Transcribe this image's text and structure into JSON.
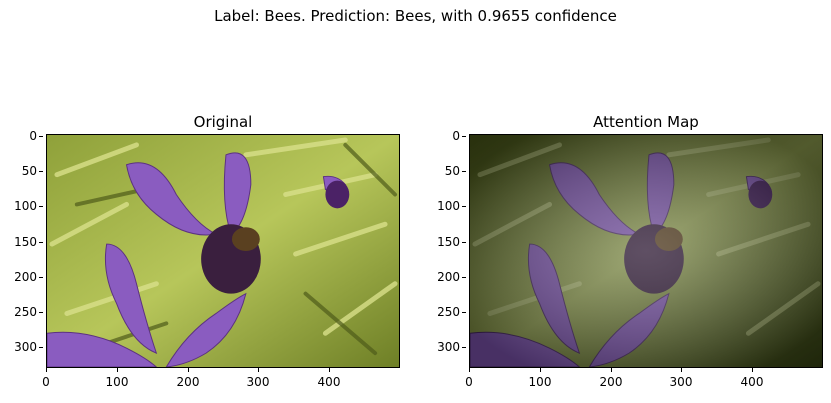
{
  "figure": {
    "suptitle": "Label: Bees. Prediction: Bees, with 0.9655 confidence"
  },
  "panels": [
    {
      "title": "Original",
      "image": "lavender flower with bee, vivid colors",
      "y_ticks": [
        "0",
        "50",
        "100",
        "150",
        "200",
        "250",
        "300"
      ],
      "x_ticks": [
        "0",
        "100",
        "200",
        "300",
        "400"
      ]
    },
    {
      "title": "Attention Map",
      "image": "same image darkened by attention mask",
      "y_ticks": [
        "0",
        "50",
        "100",
        "150",
        "200",
        "250",
        "300"
      ],
      "x_ticks": [
        "0",
        "100",
        "200",
        "300",
        "400"
      ]
    }
  ],
  "colors": {
    "foliage_light": "#b7c65a",
    "foliage_dark": "#3e4a14",
    "petal": "#8a5cc0",
    "petal_dark": "#4b2266",
    "bee": "#2a1e14"
  }
}
